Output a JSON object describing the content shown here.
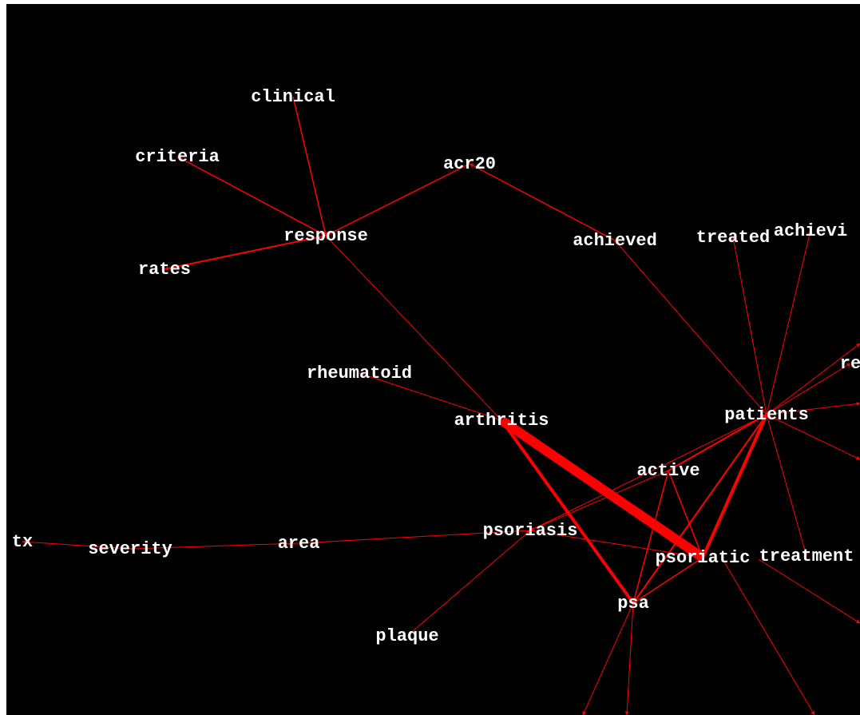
{
  "nodes": [
    {
      "label": "clinical"
    },
    {
      "label": "criteria"
    },
    {
      "label": "acr20"
    },
    {
      "label": "response"
    },
    {
      "label": "rates"
    },
    {
      "label": "achieved"
    },
    {
      "label": "treated"
    },
    {
      "label": "achievi"
    },
    {
      "label": "rheumatoid"
    },
    {
      "label": "arthritis"
    },
    {
      "label": "patients"
    },
    {
      "label": "re"
    },
    {
      "label": "active"
    },
    {
      "label": "psoriasis"
    },
    {
      "label": "tx"
    },
    {
      "label": "severity"
    },
    {
      "label": "area"
    },
    {
      "label": "psoriatic"
    },
    {
      "label": "treatment"
    },
    {
      "label": "psa"
    },
    {
      "label": "plaque"
    }
  ]
}
